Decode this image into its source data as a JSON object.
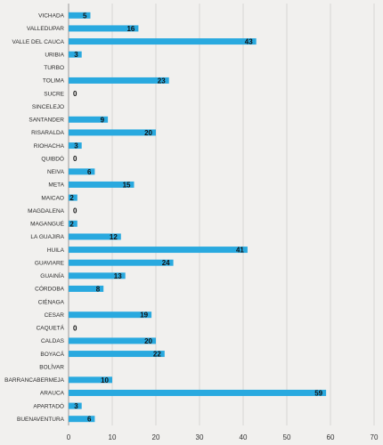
{
  "chart_data": {
    "type": "bar",
    "orientation": "horizontal",
    "title": "",
    "xlabel": "",
    "ylabel": "",
    "xlim": [
      0,
      70
    ],
    "x_ticks": [
      "0",
      "10",
      "20",
      "30",
      "40",
      "50",
      "60",
      "70"
    ],
    "grid": "vertical",
    "bar_color": "#29a9df",
    "categories": [
      "VICHADA",
      "VALLEDUPAR",
      "VALLE DEL CAUCA",
      "URIBIA",
      "TURBO",
      "TOLIMA",
      "SUCRE",
      "SINCELEJO",
      "SANTANDER",
      "RISARALDA",
      "RIOHACHA",
      "QUIBDÓ",
      "NEIVA",
      "META",
      "MAICAO",
      "MAGDALENA",
      "MAGANGUÉ",
      "LA GUAJIRA",
      "HUILA",
      "GUAVIARE",
      "GUAINÍA",
      "CÓRDOBA",
      "CIÉNAGA",
      "CESAR",
      "CAQUETÁ",
      "CALDAS",
      "BOYACÁ",
      "BOLÍVAR",
      "BARRANCABERMEJA",
      "ARAUCA",
      "APARTADÓ",
      "BUENAVENTURA"
    ],
    "values": [
      5,
      16,
      43,
      3,
      null,
      23,
      0,
      null,
      9,
      20,
      3,
      0,
      6,
      15,
      2,
      0,
      2,
      12,
      41,
      24,
      13,
      8,
      null,
      19,
      0,
      20,
      22,
      null,
      10,
      59,
      3,
      6
    ],
    "value_labels": [
      "5",
      "16",
      "43",
      "3",
      "",
      "23",
      "0",
      "",
      "9",
      "20",
      "3",
      "0",
      "6",
      "15",
      "2",
      "0",
      "2",
      "12",
      "41",
      "24",
      "13",
      "8",
      "",
      "19",
      "0",
      "20",
      "22",
      "",
      "10",
      "59",
      "3",
      "6"
    ]
  }
}
